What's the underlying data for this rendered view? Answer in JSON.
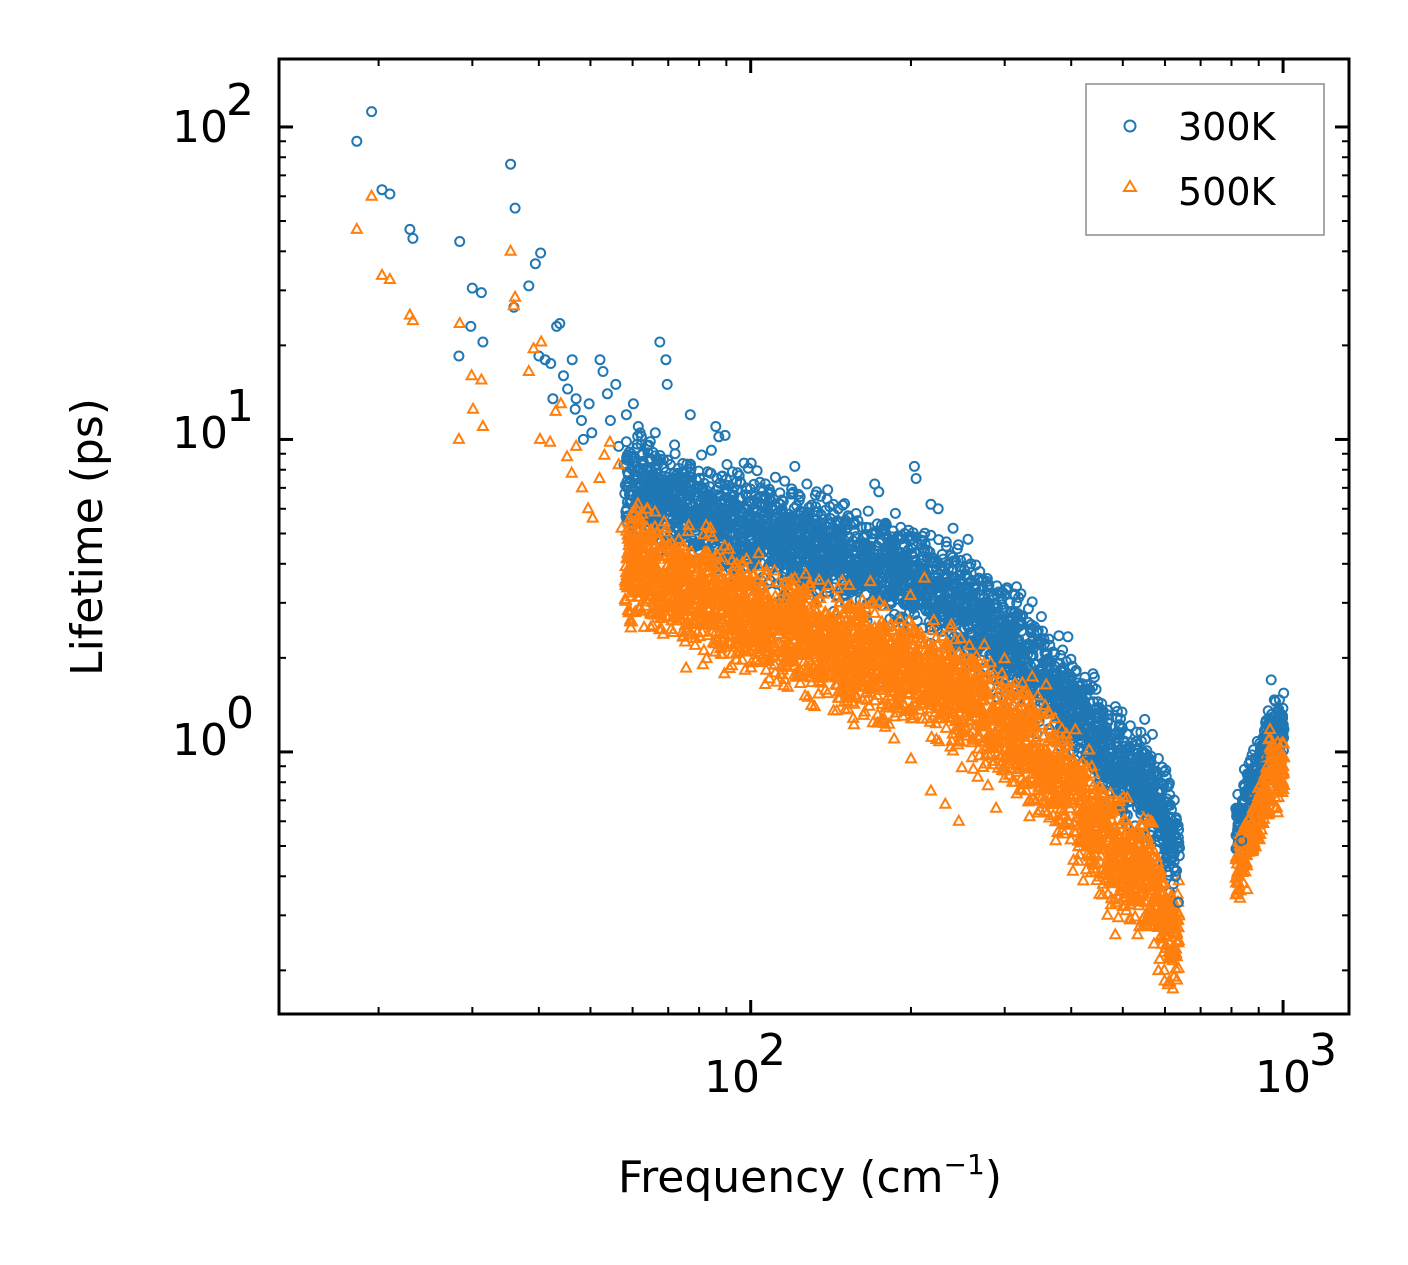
{
  "chart_data": {
    "type": "scatter",
    "x_scale": "log",
    "y_scale": "log",
    "xlabel": "Frequency (cm",
    "xlabel_sup": "−1",
    "xlabel_end": ")",
    "ylabel": "Lifetime (ps)",
    "xlim": [
      13,
      1330
    ],
    "ylim": [
      0.145,
      165
    ],
    "x_ticks": [
      {
        "base": "10",
        "exp": "2",
        "value": 100
      },
      {
        "base": "10",
        "exp": "3",
        "value": 1000
      }
    ],
    "y_ticks": [
      {
        "base": "10",
        "exp": "0",
        "value": 1
      },
      {
        "base": "10",
        "exp": "1",
        "value": 10
      },
      {
        "base": "10",
        "exp": "2",
        "value": 100
      }
    ],
    "legend_position": "top-right",
    "series": [
      {
        "name": "300K",
        "marker": "circle",
        "color": "#1f77b4",
        "points": [
          [
            18.2,
            90
          ],
          [
            19.4,
            112
          ],
          [
            20.3,
            63
          ],
          [
            21.0,
            61
          ],
          [
            22.9,
            47
          ],
          [
            23.2,
            44
          ],
          [
            28.4,
            43
          ],
          [
            30.0,
            30.5
          ],
          [
            29.8,
            23
          ],
          [
            31.2,
            29.5
          ],
          [
            31.4,
            20.5
          ],
          [
            28.3,
            18.5
          ],
          [
            35.4,
            76
          ],
          [
            36.1,
            55
          ],
          [
            35.9,
            26.5
          ],
          [
            38.3,
            31
          ],
          [
            39.4,
            36.5
          ],
          [
            40.3,
            39.5
          ],
          [
            40.0,
            18.5
          ],
          [
            41.1,
            18.0
          ],
          [
            42.1,
            17.5
          ],
          [
            43.2,
            23
          ],
          [
            43.8,
            23.5
          ],
          [
            42.5,
            13.5
          ],
          [
            44.5,
            16
          ],
          [
            45.3,
            14.5
          ],
          [
            46.2,
            18.0
          ],
          [
            47.0,
            13.5
          ],
          [
            46.8,
            12.5
          ],
          [
            48.1,
            11.5
          ],
          [
            48.5,
            10.0
          ],
          [
            50.3,
            10.5
          ],
          [
            49.7,
            13.0
          ],
          [
            52.1,
            18.0
          ],
          [
            53.8,
            14.0
          ],
          [
            52.8,
            16.5
          ],
          [
            54.5,
            11.5
          ],
          [
            55.8,
            15.0
          ],
          [
            56.5,
            9.5
          ],
          [
            58.4,
            12.0
          ],
          [
            57.8,
            8.3
          ],
          [
            60.2,
            13.0
          ],
          [
            61.5,
            11.0
          ],
          [
            62.7,
            9.0
          ],
          [
            64.0,
            8.0
          ],
          [
            66.2,
            10.5
          ],
          [
            66.8,
            7.5
          ],
          [
            67.5,
            20.5
          ],
          [
            69.3,
            18.0
          ],
          [
            69.7,
            15.0
          ],
          [
            71.2,
            7.2
          ],
          [
            72.1,
            9.0
          ],
          [
            74.5,
            7.5
          ],
          [
            77.0,
            12.0
          ],
          [
            79.5,
            7.0
          ],
          [
            81.0,
            6.5
          ],
          [
            84.2,
            7.8
          ],
          [
            86.0,
            11.0
          ],
          [
            87.1,
            10.2
          ],
          [
            89.5,
            10.3
          ],
          [
            93.0,
            7.0
          ],
          [
            97.2,
            8.4
          ],
          [
            100.2,
            8.4
          ],
          [
            104.1,
            7.3
          ],
          [
            109.0,
            6.4
          ],
          [
            114.5,
            6.0
          ],
          [
            121.0,
            8.2
          ],
          [
            127.5,
            7.2
          ],
          [
            133.0,
            6.8
          ],
          [
            139.5,
            6.9
          ],
          [
            146.0,
            6.0
          ],
          [
            152.4,
            5.7
          ],
          [
            159.0,
            5.5
          ],
          [
            166.2,
            5.9
          ],
          [
            171.0,
            7.2
          ],
          [
            174.0,
            6.8
          ],
          [
            178.3,
            5.2
          ],
          [
            187.0,
            5.8
          ],
          [
            194.5,
            5.0
          ],
          [
            203.0,
            8.2
          ],
          [
            204.5,
            7.5
          ],
          [
            210.2,
            4.9
          ],
          [
            218.0,
            6.2
          ],
          [
            225.0,
            6.0
          ],
          [
            233.0,
            4.7
          ],
          [
            240.0,
            5.2
          ],
          [
            248.0,
            4.1
          ],
          [
            258.0,
            3.9
          ],
          [
            268.0,
            3.6
          ],
          [
            279.0,
            3.4
          ],
          [
            290.0,
            3.4
          ],
          [
            302.0,
            3.3
          ],
          [
            316.0,
            3.0
          ],
          [
            332.0,
            2.6
          ],
          [
            348.0,
            2.2
          ],
          [
            365.0,
            1.95
          ],
          [
            383.0,
            1.7
          ],
          [
            402.0,
            1.6
          ],
          [
            422.0,
            1.45
          ],
          [
            442.0,
            1.3
          ],
          [
            463.0,
            1.1
          ],
          [
            485.0,
            0.95
          ],
          [
            507.0,
            0.85
          ],
          [
            528.0,
            1.02
          ],
          [
            546.0,
            1.0
          ],
          [
            572.0,
            0.72
          ],
          [
            594.0,
            0.64
          ],
          [
            605.0,
            0.55
          ],
          [
            618.0,
            0.5
          ],
          [
            628.0,
            0.4
          ],
          [
            636.0,
            0.33
          ],
          [
            822.0,
            0.62
          ],
          [
            836.0,
            0.52
          ],
          [
            860.0,
            0.72
          ],
          [
            885.0,
            0.9
          ],
          [
            905.0,
            0.97
          ],
          [
            930.0,
            1.25
          ],
          [
            950.0,
            1.7
          ],
          [
            968.0,
            1.45
          ],
          [
            985.0,
            1.32
          ],
          [
            1000.0,
            1.18
          ]
        ]
      },
      {
        "name": "500K",
        "marker": "triangle",
        "color": "#ff7f0e",
        "points": [
          [
            18.2,
            47
          ],
          [
            19.4,
            60
          ],
          [
            20.3,
            33.5
          ],
          [
            21.0,
            32.5
          ],
          [
            22.9,
            25.0
          ],
          [
            23.2,
            24.0
          ],
          [
            28.4,
            23.5
          ],
          [
            28.3,
            10.0
          ],
          [
            29.9,
            16.0
          ],
          [
            30.1,
            12.5
          ],
          [
            31.2,
            15.5
          ],
          [
            31.4,
            11.0
          ],
          [
            35.4,
            40.0
          ],
          [
            36.1,
            28.5
          ],
          [
            35.9,
            26.8
          ],
          [
            38.3,
            16.5
          ],
          [
            39.1,
            19.5
          ],
          [
            40.4,
            20.5
          ],
          [
            40.2,
            10.0
          ],
          [
            42.0,
            9.8
          ],
          [
            43.0,
            12.3
          ],
          [
            44.0,
            13.0
          ],
          [
            45.2,
            8.8
          ],
          [
            46.1,
            7.8
          ],
          [
            47.0,
            9.5
          ],
          [
            48.2,
            7.0
          ],
          [
            49.5,
            6.0
          ],
          [
            50.5,
            5.6
          ],
          [
            52.0,
            7.5
          ],
          [
            53.1,
            8.9
          ],
          [
            54.4,
            9.8
          ],
          [
            56.5,
            8.3
          ],
          [
            57.2,
            5.2
          ],
          [
            58.6,
            3.6
          ],
          [
            59.5,
            4.3
          ],
          [
            61.0,
            6.0
          ],
          [
            62.1,
            4.8
          ],
          [
            63.5,
            3.6
          ],
          [
            65.0,
            4.0
          ],
          [
            66.5,
            5.0
          ],
          [
            68.2,
            3.0
          ],
          [
            70.0,
            4.6
          ],
          [
            71.5,
            3.3
          ],
          [
            73.0,
            4.2
          ],
          [
            74.5,
            3.5
          ],
          [
            76.5,
            5.3
          ],
          [
            78.5,
            3.1
          ],
          [
            81.0,
            2.8
          ],
          [
            84.0,
            5.2
          ],
          [
            86.5,
            2.7
          ],
          [
            89.0,
            3.0
          ],
          [
            92.0,
            2.5
          ],
          [
            95.0,
            2.3
          ],
          [
            98.0,
            2.1
          ],
          [
            102.0,
            3.0
          ],
          [
            107.0,
            2.3
          ],
          [
            111.0,
            1.9
          ],
          [
            116.0,
            2.1
          ],
          [
            121.0,
            3.6
          ],
          [
            127.0,
            2.5
          ],
          [
            132.0,
            1.8
          ],
          [
            137.0,
            3.2
          ],
          [
            143.0,
            2.0
          ],
          [
            149.0,
            1.6
          ],
          [
            155.0,
            1.5
          ],
          [
            161.0,
            2.8
          ],
          [
            167.0,
            1.4
          ],
          [
            173.0,
            2.4
          ],
          [
            179.0,
            1.2
          ],
          [
            186.0,
            1.1
          ],
          [
            193.0,
            1.3
          ],
          [
            200.0,
            0.95
          ],
          [
            207.0,
            1.8
          ],
          [
            212.0,
            3.6
          ],
          [
            218.0,
            0.75
          ],
          [
            225.0,
            1.6
          ],
          [
            232.0,
            0.68
          ],
          [
            239.0,
            1.5
          ],
          [
            246.0,
            0.6
          ],
          [
            254.0,
            2.0
          ],
          [
            262.0,
            0.88
          ],
          [
            270.0,
            1.4
          ],
          [
            279.0,
            0.78
          ],
          [
            289.0,
            0.66
          ],
          [
            299.0,
            1.2
          ],
          [
            310.0,
            0.8
          ],
          [
            322.0,
            0.95
          ],
          [
            334.0,
            0.62
          ],
          [
            347.0,
            0.75
          ],
          [
            360.0,
            0.88
          ],
          [
            374.0,
            0.52
          ],
          [
            389.0,
            0.7
          ],
          [
            404.0,
            0.45
          ],
          [
            420.0,
            0.58
          ],
          [
            436.0,
            0.41
          ],
          [
            452.0,
            0.35
          ],
          [
            468.0,
            0.3
          ],
          [
            484.0,
            0.26
          ],
          [
            500.0,
            0.32
          ],
          [
            517.0,
            0.29
          ],
          [
            533.0,
            0.26
          ],
          [
            549.0,
            0.48
          ],
          [
            566.0,
            0.36
          ],
          [
            583.0,
            0.28
          ],
          [
            598.0,
            0.2
          ],
          [
            608.0,
            0.18
          ],
          [
            616.0,
            0.22
          ],
          [
            625.0,
            0.28
          ],
          [
            820.0,
            0.4
          ],
          [
            830.0,
            0.34
          ],
          [
            845.0,
            0.48
          ],
          [
            865.0,
            0.55
          ],
          [
            885.0,
            0.66
          ],
          [
            905.0,
            0.72
          ],
          [
            925.0,
            0.85
          ],
          [
            945.0,
            1.18
          ],
          [
            960.0,
            1.05
          ],
          [
            980.0,
            0.98
          ],
          [
            1000.0,
            0.9
          ]
        ]
      }
    ]
  }
}
